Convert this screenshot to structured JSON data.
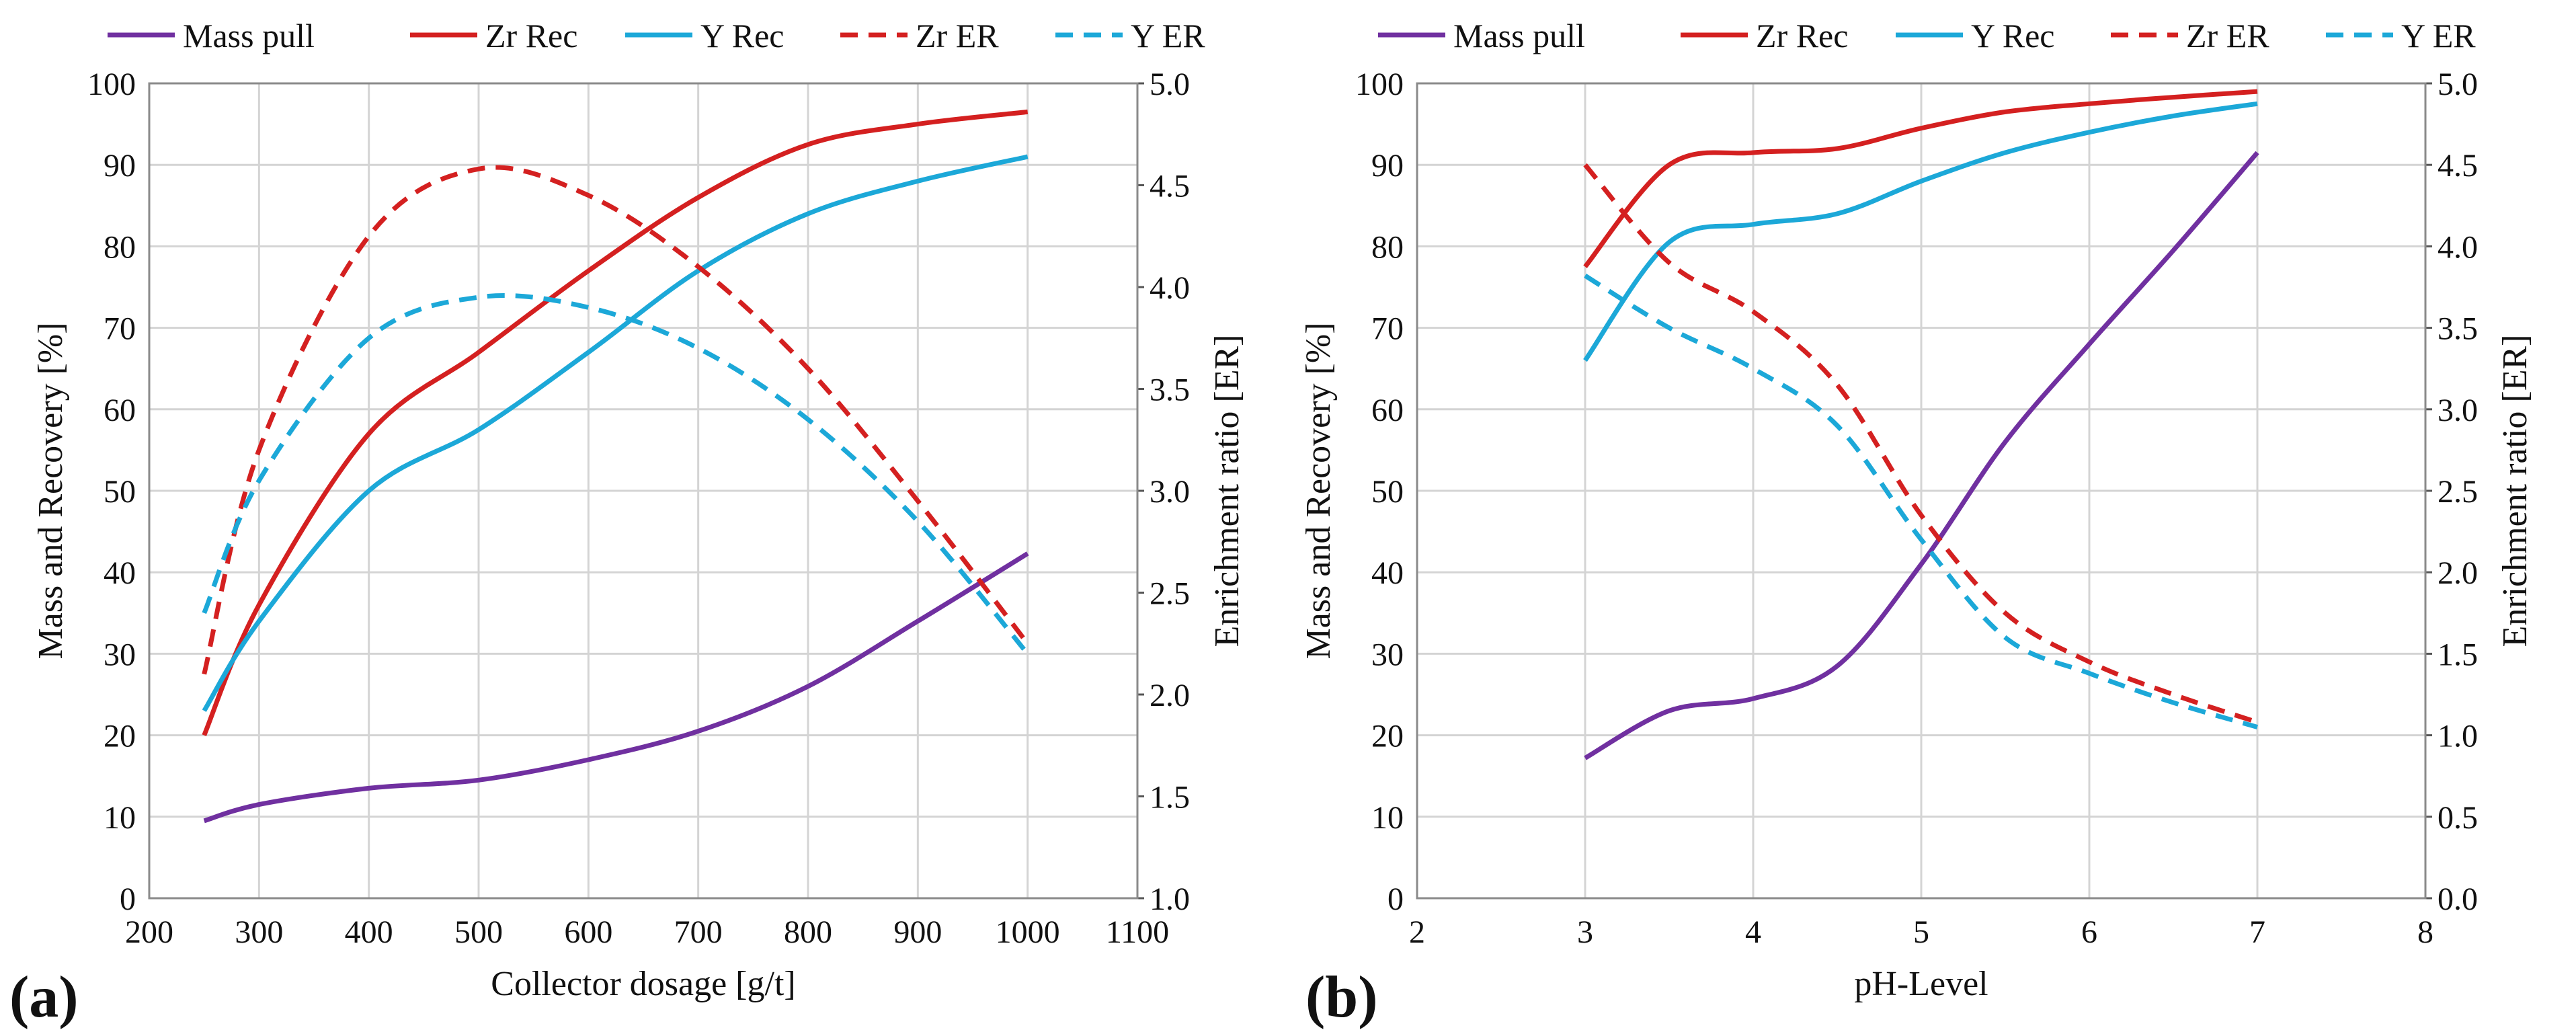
{
  "chart_data": [
    {
      "type": "line",
      "panel_label": "(a)",
      "title": "",
      "xlabel": "Collector dosage [g/t]",
      "ylabel": "Mass and Recovery [%]",
      "y2label": "Enrichment ratio [ER]",
      "xlim": [
        200,
        1100
      ],
      "ylim": [
        0,
        100
      ],
      "y2lim": [
        1.0,
        5.0
      ],
      "grid": true,
      "x_ticks": [
        "200",
        "300",
        "400",
        "500",
        "600",
        "700",
        "800",
        "900",
        "1000",
        "1100"
      ],
      "y_ticks": [
        "0",
        "10",
        "20",
        "30",
        "40",
        "50",
        "60",
        "70",
        "80",
        "90",
        "100"
      ],
      "y2_ticks": [
        "1.0",
        "1.5",
        "2.0",
        "2.5",
        "3.0",
        "3.5",
        "4.0",
        "4.5",
        "5.0"
      ],
      "legend_position": "top",
      "series": [
        {
          "name": "Mass pull",
          "axis": "left",
          "color": "#7030a0",
          "dash": "solid",
          "x": [
            250,
            300,
            400,
            500,
            600,
            700,
            800,
            900,
            1000
          ],
          "y": [
            9.5,
            11.5,
            13.5,
            14.5,
            17,
            20.5,
            26,
            34,
            42.3
          ]
        },
        {
          "name": "Zr Rec",
          "axis": "left",
          "color": "#d42020",
          "dash": "solid",
          "x": [
            250,
            300,
            400,
            500,
            600,
            700,
            800,
            900,
            1000
          ],
          "y": [
            20,
            36,
            57,
            67,
            77,
            86,
            92.5,
            95,
            96.5
          ]
        },
        {
          "name": "Y Rec",
          "axis": "left",
          "color": "#1ca8d8",
          "dash": "solid",
          "x": [
            250,
            300,
            400,
            500,
            600,
            700,
            800,
            900,
            1000
          ],
          "y": [
            23,
            34,
            50,
            57.5,
            67,
            77,
            84,
            88,
            91
          ]
        },
        {
          "name": "Zr ER",
          "axis": "right",
          "color": "#d42020",
          "dash": "dashed",
          "x": [
            250,
            300,
            400,
            500,
            600,
            700,
            800,
            900,
            1000
          ],
          "y": [
            2.1,
            3.2,
            4.25,
            4.58,
            4.45,
            4.1,
            3.6,
            2.95,
            2.25
          ]
        },
        {
          "name": "Y ER",
          "axis": "right",
          "color": "#1ca8d8",
          "dash": "dashed",
          "x": [
            250,
            300,
            400,
            500,
            600,
            700,
            800,
            900,
            1000
          ],
          "y": [
            2.4,
            3.05,
            3.75,
            3.95,
            3.9,
            3.7,
            3.35,
            2.85,
            2.2
          ]
        }
      ]
    },
    {
      "type": "line",
      "panel_label": "(b)",
      "title": "",
      "xlabel": "pH-Level",
      "ylabel": "Mass and Recovery [%]",
      "y2label": "Enrichment ratio [ER]",
      "xlim": [
        2,
        8
      ],
      "ylim": [
        0,
        100
      ],
      "y2lim": [
        0.0,
        5.0
      ],
      "grid": true,
      "x_ticks": [
        "2",
        "3",
        "4",
        "5",
        "6",
        "7",
        "8"
      ],
      "y_ticks": [
        "0",
        "10",
        "20",
        "30",
        "40",
        "50",
        "60",
        "70",
        "80",
        "90",
        "100"
      ],
      "y2_ticks": [
        "0.0",
        "0.5",
        "1.0",
        "1.5",
        "2.0",
        "2.5",
        "3.0",
        "3.5",
        "4.0",
        "4.5",
        "5.0"
      ],
      "legend_position": "top",
      "series": [
        {
          "name": "Mass pull",
          "axis": "left",
          "color": "#7030a0",
          "dash": "solid",
          "x": [
            3,
            3.5,
            4,
            4.5,
            5,
            5.5,
            6,
            6.5,
            7
          ],
          "y": [
            17.2,
            23,
            24.5,
            28.5,
            41,
            56,
            68,
            79.5,
            91.5
          ]
        },
        {
          "name": "Zr Rec",
          "axis": "left",
          "color": "#d42020",
          "dash": "solid",
          "x": [
            3,
            3.5,
            4,
            4.5,
            5,
            5.5,
            6,
            6.5,
            7
          ],
          "y": [
            77.5,
            90,
            91.5,
            92,
            94.5,
            96.5,
            97.5,
            98.3,
            99
          ]
        },
        {
          "name": "Y Rec",
          "axis": "left",
          "color": "#1ca8d8",
          "dash": "solid",
          "x": [
            3,
            3.5,
            4,
            4.5,
            5,
            5.5,
            6,
            6.5,
            7
          ],
          "y": [
            66,
            80.5,
            82.7,
            84,
            88,
            91.5,
            94,
            96,
            97.5
          ]
        },
        {
          "name": "Zr ER",
          "axis": "right",
          "color": "#d42020",
          "dash": "dashed",
          "x": [
            3,
            3.5,
            4,
            4.5,
            5,
            5.5,
            6,
            6.5,
            7
          ],
          "y": [
            4.5,
            3.9,
            3.6,
            3.15,
            2.35,
            1.75,
            1.45,
            1.25,
            1.08
          ]
        },
        {
          "name": "Y ER",
          "axis": "right",
          "color": "#1ca8d8",
          "dash": "dashed",
          "x": [
            3,
            3.5,
            4,
            4.5,
            5,
            5.5,
            6,
            6.5,
            7
          ],
          "y": [
            3.82,
            3.5,
            3.25,
            2.9,
            2.2,
            1.6,
            1.38,
            1.2,
            1.05
          ]
        }
      ]
    }
  ]
}
